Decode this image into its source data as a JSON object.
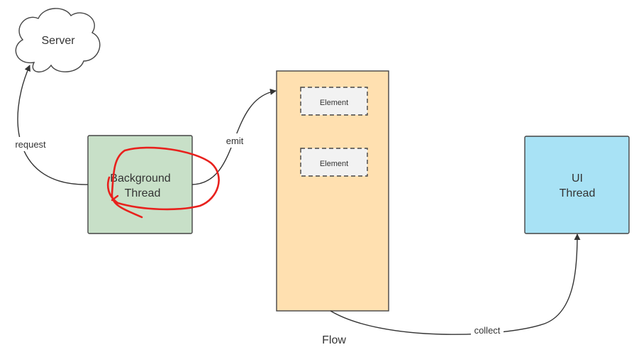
{
  "nodes": {
    "server": {
      "label": "Server"
    },
    "background": {
      "line1": "Background",
      "line2": "Thread"
    },
    "flow": {
      "label": "Flow"
    },
    "element1": {
      "label": "Element"
    },
    "element2": {
      "label": "Element"
    },
    "ui_thread": {
      "line1": "UI",
      "line2": "Thread"
    }
  },
  "edges": {
    "request": "request",
    "emit": "emit",
    "collect": "collect"
  },
  "colors": {
    "background_fill": "#c8e0c8",
    "flow_fill": "#ffe0b0",
    "element_fill": "#f2f2f2",
    "ui_fill": "#a8e2f5",
    "stroke": "#444444",
    "annotation": "#e8211d"
  }
}
